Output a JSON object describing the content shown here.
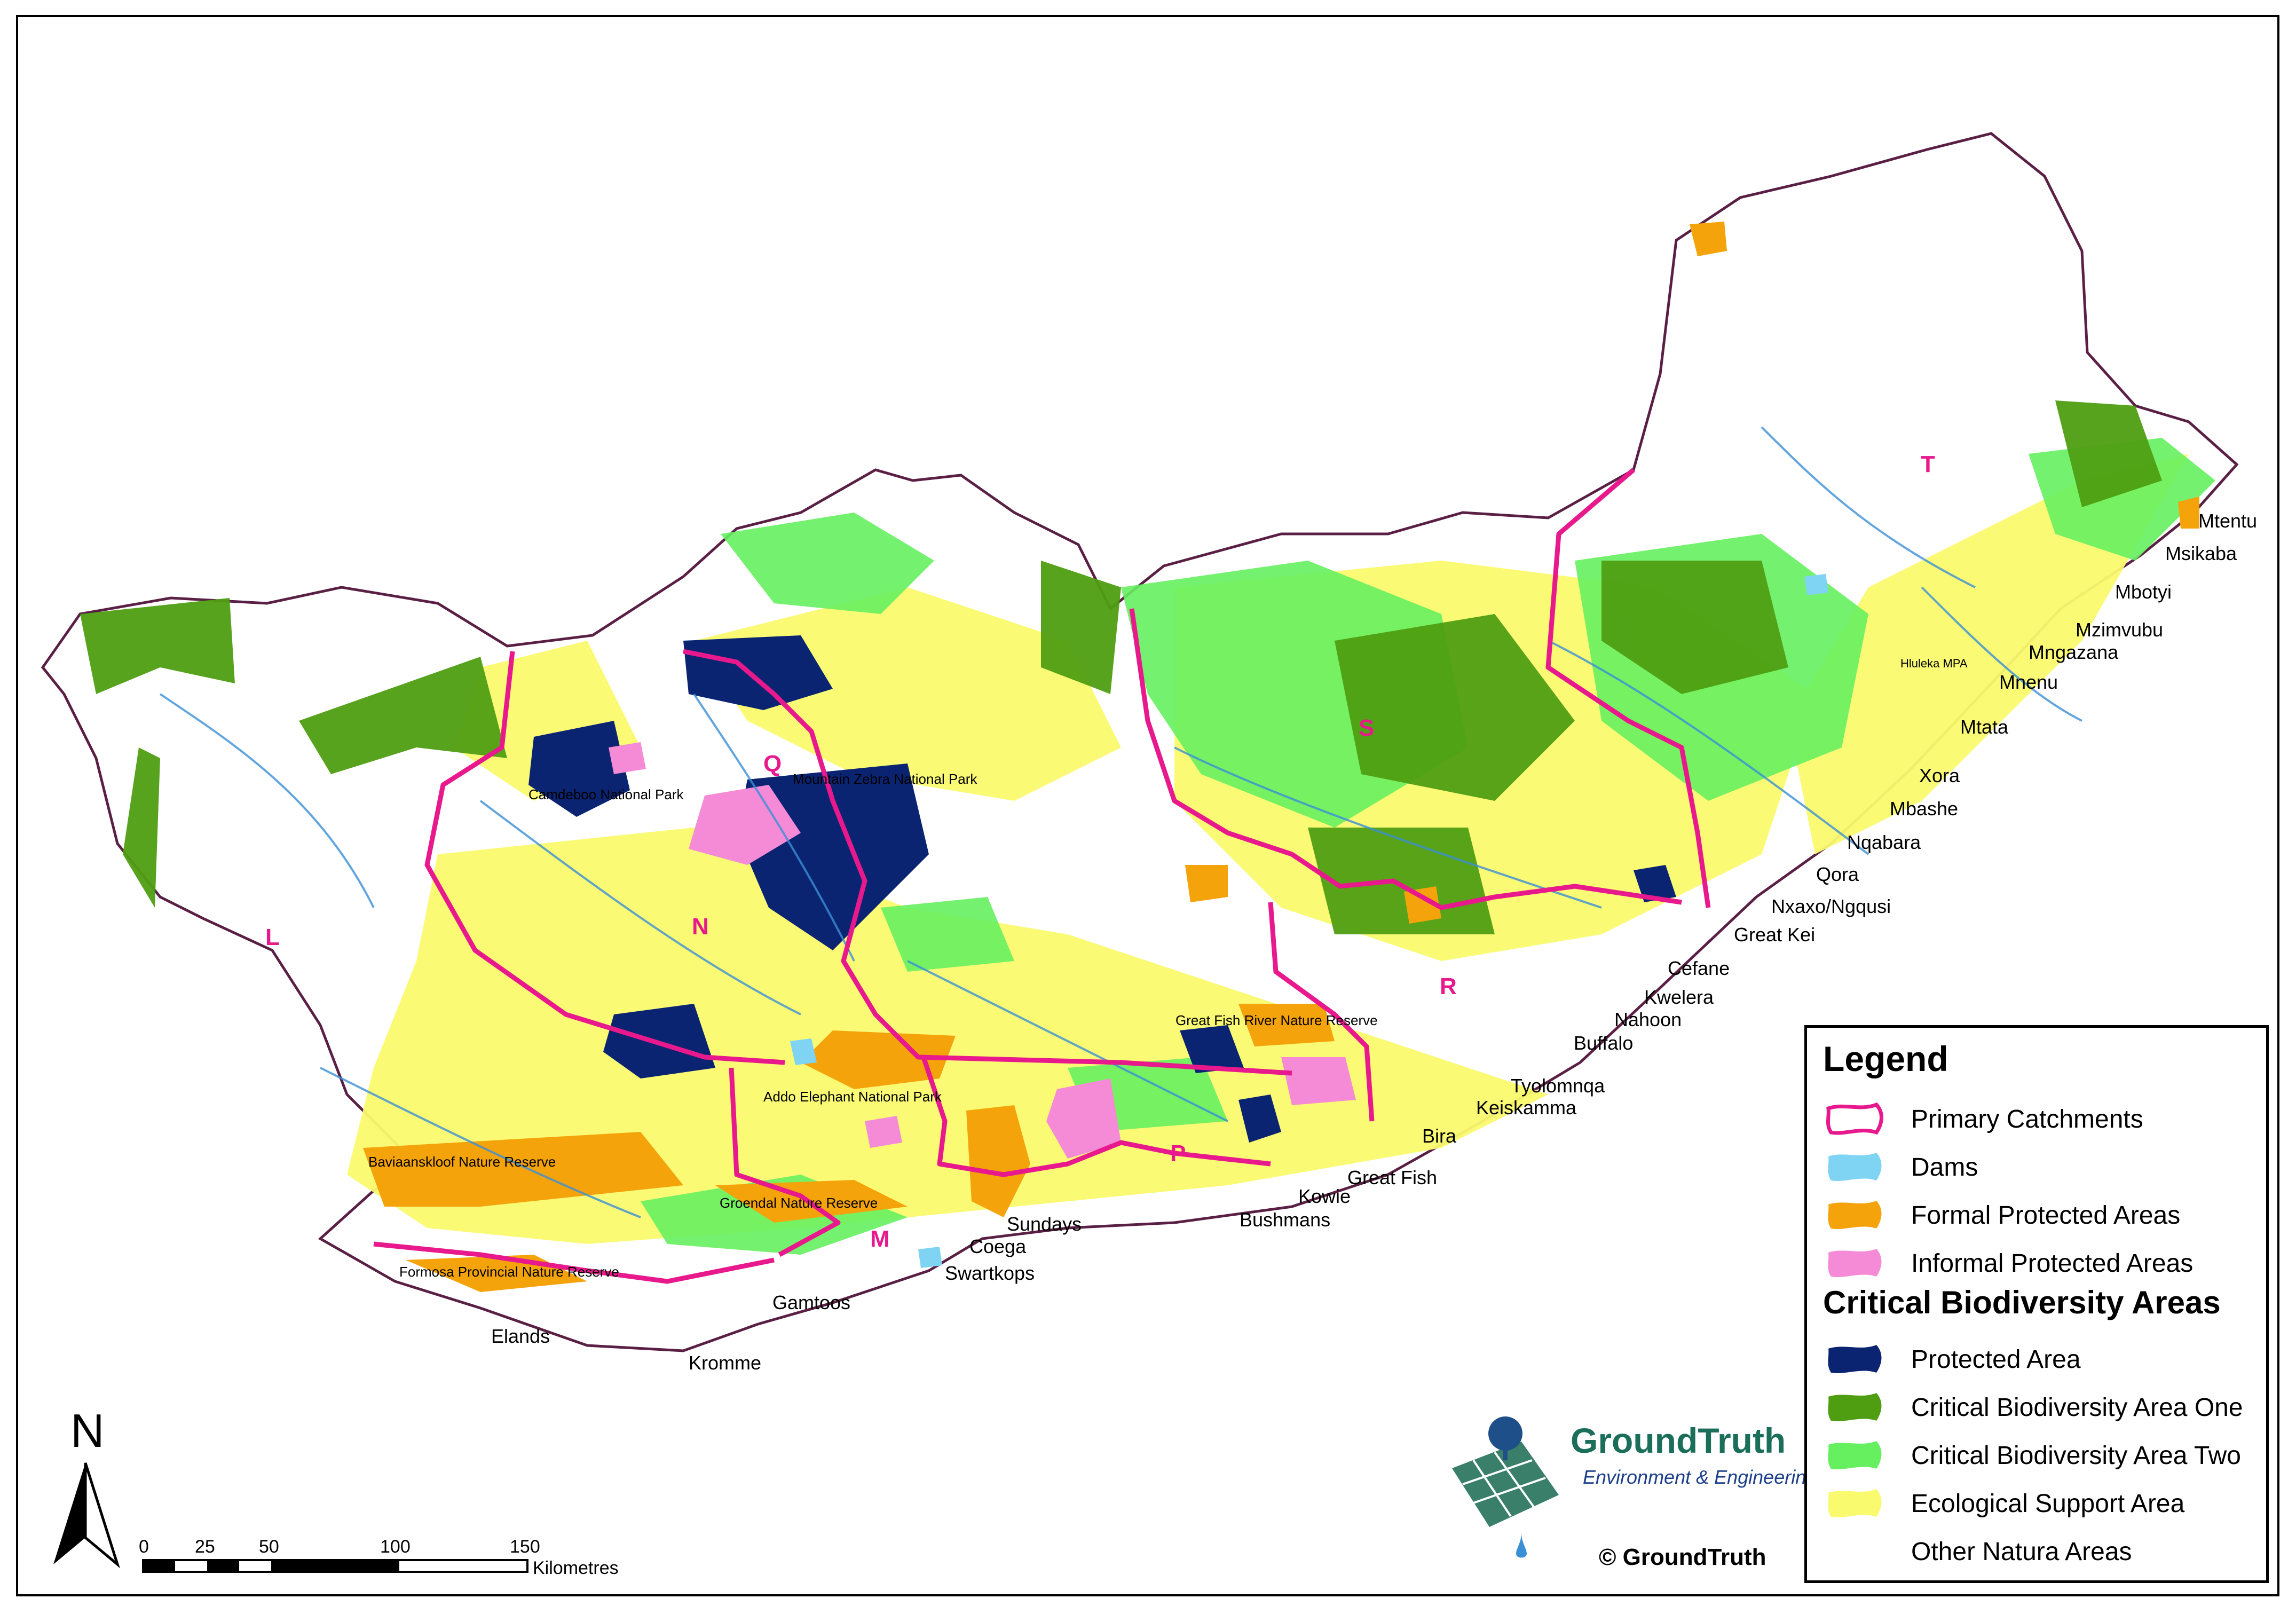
{
  "map": {
    "catchment_letters": [
      {
        "id": "T",
        "text": "T"
      },
      {
        "id": "S",
        "text": "S"
      },
      {
        "id": "R",
        "text": "R"
      },
      {
        "id": "Q",
        "text": "Q"
      },
      {
        "id": "N",
        "text": "N"
      },
      {
        "id": "L",
        "text": "L"
      },
      {
        "id": "P",
        "text": "P"
      },
      {
        "id": "M",
        "text": "M"
      }
    ],
    "park_labels": [
      {
        "id": "camdeboo",
        "text": "Camdeboo National Park"
      },
      {
        "id": "mountain-zebra",
        "text": "Mountain Zebra National Park"
      },
      {
        "id": "great-fish",
        "text": "Great Fish River Nature Reserve"
      },
      {
        "id": "addo",
        "text": "Addo Elephant National Park"
      },
      {
        "id": "baviaanskloof",
        "text": "Baviaanskloof Nature Reserve"
      },
      {
        "id": "groendal",
        "text": "Groendal Nature Reserve"
      },
      {
        "id": "formosa",
        "text": "Formosa Provincial Nature Reserve"
      },
      {
        "id": "hluleka",
        "text": "Hluleka MPA"
      }
    ],
    "river_labels": [
      {
        "id": "mtentu",
        "text": "Mtentu"
      },
      {
        "id": "msikaba",
        "text": "Msikaba"
      },
      {
        "id": "mbotyi",
        "text": "Mbotyi"
      },
      {
        "id": "mzimvubu",
        "text": "Mzimvubu"
      },
      {
        "id": "mngazana",
        "text": "Mngazana"
      },
      {
        "id": "mnenu",
        "text": "Mnenu"
      },
      {
        "id": "mtata",
        "text": "Mtata"
      },
      {
        "id": "xora",
        "text": "Xora"
      },
      {
        "id": "mbashe",
        "text": "Mbashe"
      },
      {
        "id": "nqabara",
        "text": "Nqabara"
      },
      {
        "id": "qora",
        "text": "Qora"
      },
      {
        "id": "nxaxo",
        "text": "Nxaxo/Ngqusi"
      },
      {
        "id": "great-kei",
        "text": "Great Kei"
      },
      {
        "id": "cefane",
        "text": "Cefane"
      },
      {
        "id": "kwelera",
        "text": "Kwelera"
      },
      {
        "id": "nahoon",
        "text": "Nahoon"
      },
      {
        "id": "buffalo",
        "text": "Buffalo"
      },
      {
        "id": "tyolomnqa",
        "text": "Tyolomnqa"
      },
      {
        "id": "keiskamma",
        "text": "Keiskamma"
      },
      {
        "id": "bira",
        "text": "Bira"
      },
      {
        "id": "great-fish",
        "text": "Great Fish"
      },
      {
        "id": "kowie",
        "text": "Kowie"
      },
      {
        "id": "bushmans",
        "text": "Bushmans"
      },
      {
        "id": "sundays",
        "text": "Sundays"
      },
      {
        "id": "coega",
        "text": "Coega"
      },
      {
        "id": "swartkops",
        "text": "Swartkops"
      },
      {
        "id": "gamtoos",
        "text": "Gamtoos"
      },
      {
        "id": "elands",
        "text": "Elands"
      },
      {
        "id": "kromme",
        "text": "Kromme"
      }
    ]
  },
  "legend": {
    "title": "Legend",
    "subtitle": "Critical Biodiversity Areas",
    "items": [
      {
        "id": "primary-catchments",
        "label": "Primary Catchments",
        "color": "#e8198c"
      },
      {
        "id": "dams",
        "label": "Dams",
        "color": "#7fd4f4"
      },
      {
        "id": "formal-protected",
        "label": "Formal Protected Areas",
        "color": "#f5a30a"
      },
      {
        "id": "informal-protected",
        "label": "Informal Protected Areas",
        "color": "#f58ad6"
      }
    ],
    "cba_items": [
      {
        "id": "protected-area",
        "label": "Protected Area",
        "color": "#0a2472"
      },
      {
        "id": "cba-one",
        "label": "Critical Biodiversity Area One",
        "color": "#4f9e12"
      },
      {
        "id": "cba-two",
        "label": "Critical Biodiversity Area Two",
        "color": "#66f060"
      },
      {
        "id": "esa",
        "label": "Ecological Support Area",
        "color": "#fafa6e"
      },
      {
        "id": "other",
        "label": "Other Natura Areas",
        "color": "#ffffff"
      }
    ]
  },
  "north_arrow": {
    "label": "N"
  },
  "scale_bar": {
    "ticks": [
      "0",
      "25",
      "50",
      "100",
      "150"
    ],
    "unit": "Kilometres"
  },
  "logo": {
    "name": "GroundTruth",
    "tagline": "Environment & Engineering",
    "copyright": "© GroundTruth"
  }
}
